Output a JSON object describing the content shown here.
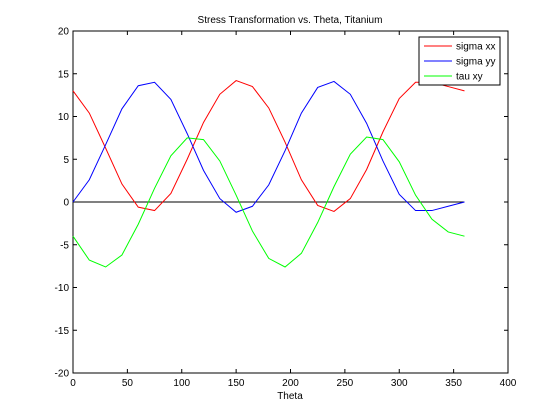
{
  "chart_data": {
    "type": "line",
    "title": "Stress Transformation vs. Theta, Titanium",
    "xlabel": "Theta",
    "ylabel": "",
    "xlim": [
      0,
      400
    ],
    "ylim": [
      -20,
      20
    ],
    "x_ticks": [
      0,
      50,
      100,
      150,
      200,
      250,
      300,
      350,
      400
    ],
    "y_ticks": [
      -20,
      -15,
      -10,
      -5,
      0,
      5,
      10,
      15,
      20
    ],
    "x_tick_labels": [
      "0",
      "50",
      "100",
      "150",
      "200",
      "250",
      "300",
      "350",
      "400"
    ],
    "y_tick_labels": [
      "-20",
      "-15",
      "-10",
      "-5",
      "0",
      "5",
      "10",
      "15",
      "20"
    ],
    "grid": false,
    "legend_position": "top-right",
    "x": [
      0,
      15,
      30,
      45,
      60,
      75,
      90,
      105,
      120,
      135,
      150,
      165,
      180,
      195,
      210,
      225,
      240,
      255,
      270,
      285,
      300,
      315,
      330,
      345,
      360
    ],
    "series": [
      {
        "name": "sigma xx",
        "color": "#ff0000",
        "values": [
          13.0,
          10.4,
          6.3,
          2.1,
          -0.6,
          -1.0,
          1.0,
          5.0,
          9.3,
          12.6,
          14.2,
          13.5,
          11.0,
          7.0,
          2.6,
          -0.4,
          -1.1,
          0.4,
          3.8,
          8.2,
          12.1,
          14.0,
          14.0,
          13.5,
          13.0
        ],
        "_shape": "sinusoid with period 180, amplitude 7.65, mean 6.5"
      },
      {
        "name": "sigma yy",
        "color": "#0000ff",
        "values": [
          0.0,
          2.6,
          6.7,
          10.9,
          13.6,
          14.0,
          12.0,
          8.0,
          3.7,
          0.4,
          -1.2,
          -0.5,
          2.0,
          6.0,
          10.4,
          13.4,
          14.1,
          12.6,
          9.2,
          4.8,
          0.9,
          -1.0,
          -1.0,
          -0.5,
          0.0
        ]
      },
      {
        "name": "tau xy",
        "color": "#00ff00",
        "values": [
          -4.0,
          -6.8,
          -7.6,
          -6.2,
          -2.6,
          1.6,
          5.4,
          7.5,
          7.3,
          4.8,
          0.8,
          -3.4,
          -6.6,
          -7.6,
          -6.0,
          -2.4,
          1.8,
          5.6,
          7.6,
          7.3,
          4.7,
          0.8,
          -2.0,
          -3.5,
          -4.0
        ]
      },
      {
        "name": "",
        "color": "#000000",
        "values": [
          0,
          0,
          0,
          0,
          0,
          0,
          0,
          0,
          0,
          0,
          0,
          0,
          0,
          0,
          0,
          0,
          0,
          0,
          0,
          0,
          0,
          0,
          0,
          0,
          0
        ],
        "in_legend": false
      }
    ]
  }
}
